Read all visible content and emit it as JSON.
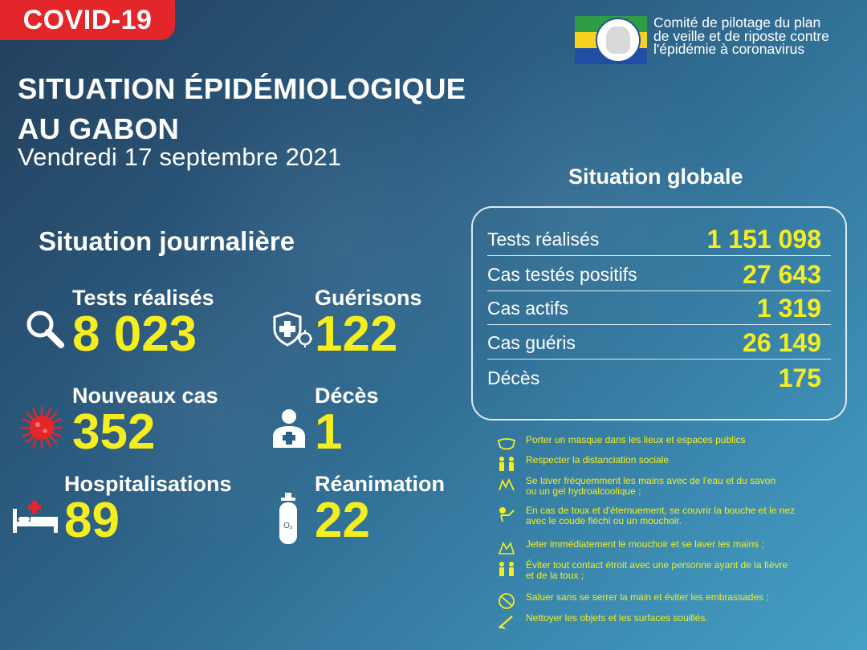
{
  "badge": "COVID-19",
  "committee": {
    "lines": [
      "Comité de pilotage du plan",
      "de veille et de riposte contre",
      "l'épidémie à coronavirus"
    ]
  },
  "title": {
    "line1": "SITUATION ÉPIDÉMIOLOGIQUE",
    "line2": "AU GABON",
    "date": "Vendredi 17 septembre 2021"
  },
  "daily": {
    "heading": "Situation journalière",
    "tests": {
      "label": "Tests réalisés",
      "value": "8 023",
      "icon": "magnifier-icon"
    },
    "recoveries": {
      "label": "Guérisons",
      "value": "122",
      "icon": "shield-cross-virus-icon"
    },
    "new_cases": {
      "label": "Nouveaux cas",
      "value": "352",
      "icon": "virus-icon"
    },
    "deaths": {
      "label": "Décès",
      "value": "1",
      "icon": "person-cross-icon"
    },
    "hospitalisations": {
      "label": "Hospitalisations",
      "value": "89",
      "icon": "hospital-bed-icon"
    },
    "icu": {
      "label": "Réanimation",
      "value": "22",
      "icon": "oxygen-tank-icon"
    }
  },
  "global": {
    "heading": "Situation globale",
    "rows": [
      {
        "label": "Tests réalisés",
        "value": "1 151 098"
      },
      {
        "label": "Cas testés positifs",
        "value": "27 643"
      },
      {
        "label": "Cas actifs",
        "value": "1 319"
      },
      {
        "label": "Cas guéris",
        "value": "26 149"
      },
      {
        "label": "Décès",
        "value": "175"
      }
    ]
  },
  "advice": [
    {
      "icon": "mask-icon",
      "lines": [
        "Porter un masque dans les lieux et espaces publics"
      ]
    },
    {
      "icon": "distancing-icon",
      "lines": [
        "Respecter la distanciation sociale"
      ]
    },
    {
      "icon": "hand-wash-icon",
      "lines": [
        "Se laver fréquemment les mains avec de l'eau et du savon",
        " ou un gel hydroalcoolique ;"
      ]
    },
    {
      "icon": "cough-elbow-icon",
      "lines": [
        "En cas de toux et d'éternuement, se couvrir la bouche et le nez",
        " avec le coude fléchi ou un mouchoir."
      ]
    },
    {
      "icon": "tissue-icon",
      "lines": [
        "Jeter immédiatement le mouchoir et se laver les mains ;"
      ]
    },
    {
      "icon": "no-contact-icon",
      "lines": [
        "Éviter tout contact étroit avec une personne ayant de la fièvre",
        " et de la toux ;"
      ]
    },
    {
      "icon": "no-handshake-icon",
      "lines": [
        "Saluer sans se serrer la main et éviter les embrassades ;"
      ]
    },
    {
      "icon": "cleaning-icon",
      "lines": [
        "Nettoyer les objets et les surfaces souillés."
      ]
    }
  ],
  "colors": {
    "accent_yellow": "#f5ee1f",
    "badge_red": "#e3262a"
  }
}
